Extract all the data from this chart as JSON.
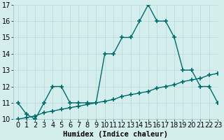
{
  "xlabel": "Humidex (Indice chaleur)",
  "x_values": [
    0,
    1,
    2,
    3,
    4,
    5,
    6,
    7,
    8,
    9,
    10,
    11,
    12,
    13,
    14,
    15,
    16,
    17,
    18,
    19,
    20,
    21,
    22,
    23
  ],
  "line1_y": [
    11,
    10.3,
    10,
    11,
    12,
    12,
    11,
    11,
    11,
    11,
    14,
    14,
    15,
    15,
    16,
    17,
    16,
    16,
    15,
    13,
    13,
    12,
    12,
    11
  ],
  "line2_y": [
    10.0,
    10.1,
    10.2,
    10.4,
    10.5,
    10.6,
    10.7,
    10.8,
    10.9,
    11.0,
    11.1,
    11.2,
    11.4,
    11.5,
    11.6,
    11.7,
    11.9,
    12.0,
    12.1,
    12.3,
    12.4,
    12.5,
    12.7,
    12.8
  ],
  "line_color": "#006b6b",
  "bg_color": "#d4eeee",
  "grid_major_color": "#c0dede",
  "grid_minor_color": "#d0e8e8",
  "ylim": [
    10,
    17
  ],
  "xlim": [
    -0.5,
    23
  ],
  "yticks": [
    10,
    11,
    12,
    13,
    14,
    15,
    16,
    17
  ],
  "xticks": [
    0,
    1,
    2,
    3,
    4,
    5,
    6,
    7,
    8,
    9,
    10,
    11,
    12,
    13,
    14,
    15,
    16,
    17,
    18,
    19,
    20,
    21,
    22,
    23
  ],
  "marker": "+",
  "marker_size": 5,
  "line_width": 1.0,
  "font_size": 7.5
}
